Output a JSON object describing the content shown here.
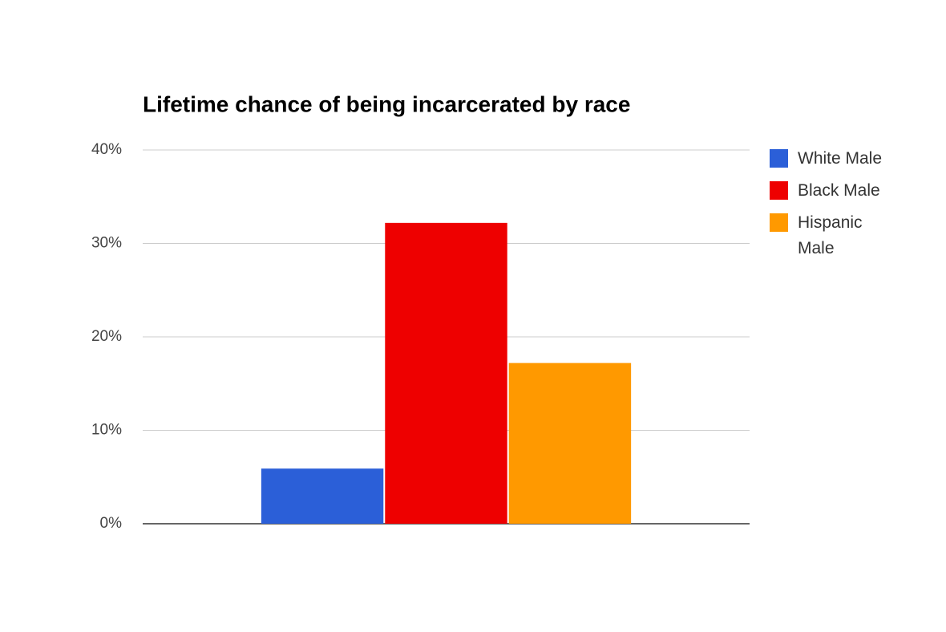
{
  "chart_data": {
    "type": "bar",
    "title": "Lifetime chance of being incarcerated by race",
    "categories": [
      null
    ],
    "series": [
      {
        "name": "White Male",
        "color": "#2b5fd8",
        "values": [
          5.9
        ]
      },
      {
        "name": "Black Male",
        "color": "#ee0000",
        "values": [
          32.2
        ]
      },
      {
        "name": "Hispanic Male",
        "color": "#ff9900",
        "values": [
          17.2
        ]
      }
    ],
    "ylim": [
      0,
      40
    ],
    "yticks": [
      {
        "value": 0,
        "label": "0%"
      },
      {
        "value": 10,
        "label": "10%"
      },
      {
        "value": 20,
        "label": "20%"
      },
      {
        "value": 30,
        "label": "30%"
      },
      {
        "value": 40,
        "label": "40%"
      }
    ],
    "grid": true,
    "legend": "right"
  }
}
